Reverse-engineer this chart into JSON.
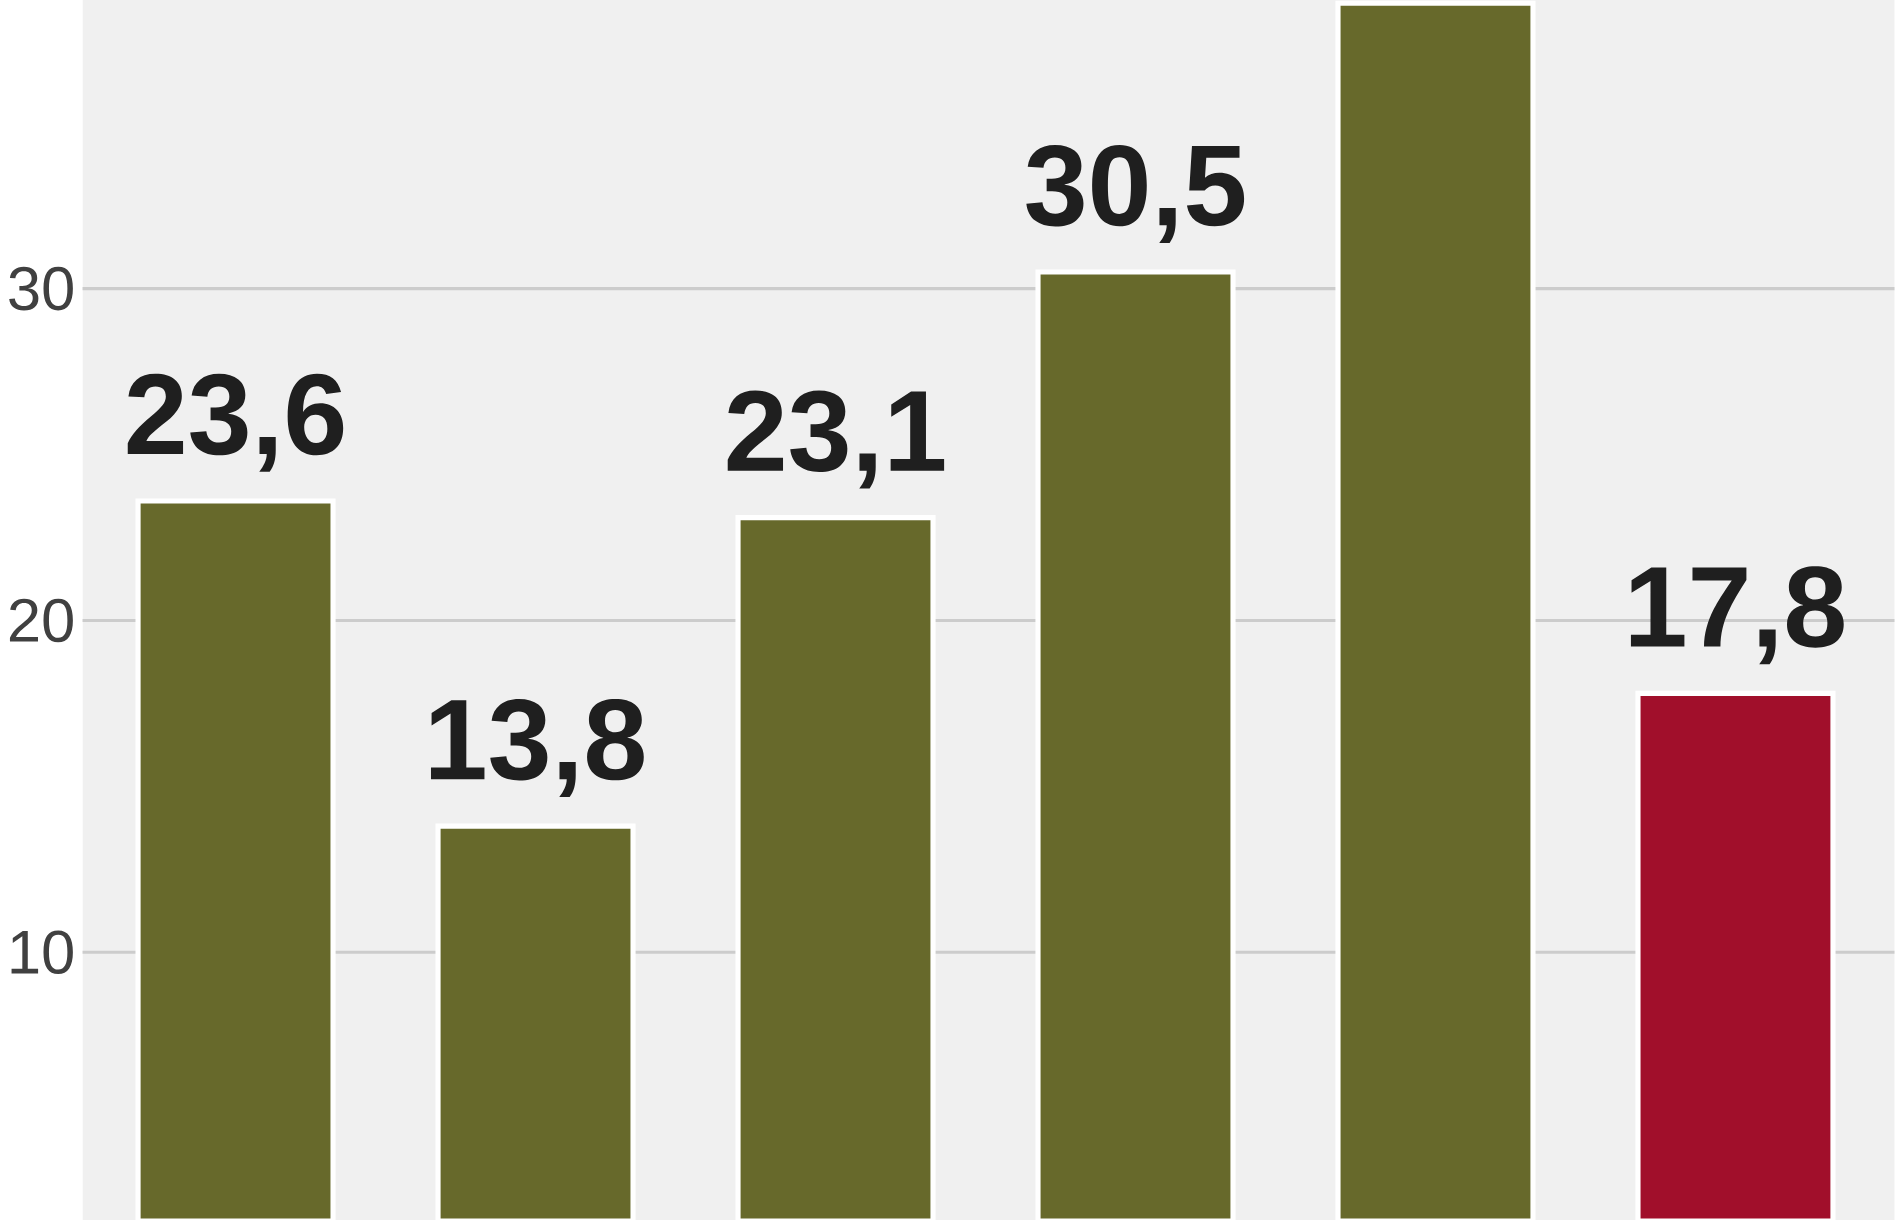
{
  "chart_data": {
    "type": "bar",
    "categories": [
      null,
      null,
      null,
      null,
      null,
      null
    ],
    "values": [
      23.6,
      13.8,
      23.1,
      30.5,
      38.6,
      17.8
    ],
    "colors": [
      "#67692b",
      "#67692b",
      "#67692b",
      "#67692b",
      "#67692b",
      "#a10f2b"
    ],
    "value_labels": [
      "23,6",
      "13,8",
      "23,1",
      "30,5",
      null,
      "17,8"
    ],
    "ylim": [
      1.9,
      38.7
    ],
    "yticks": [
      10,
      20,
      30
    ],
    "grid": "y"
  }
}
